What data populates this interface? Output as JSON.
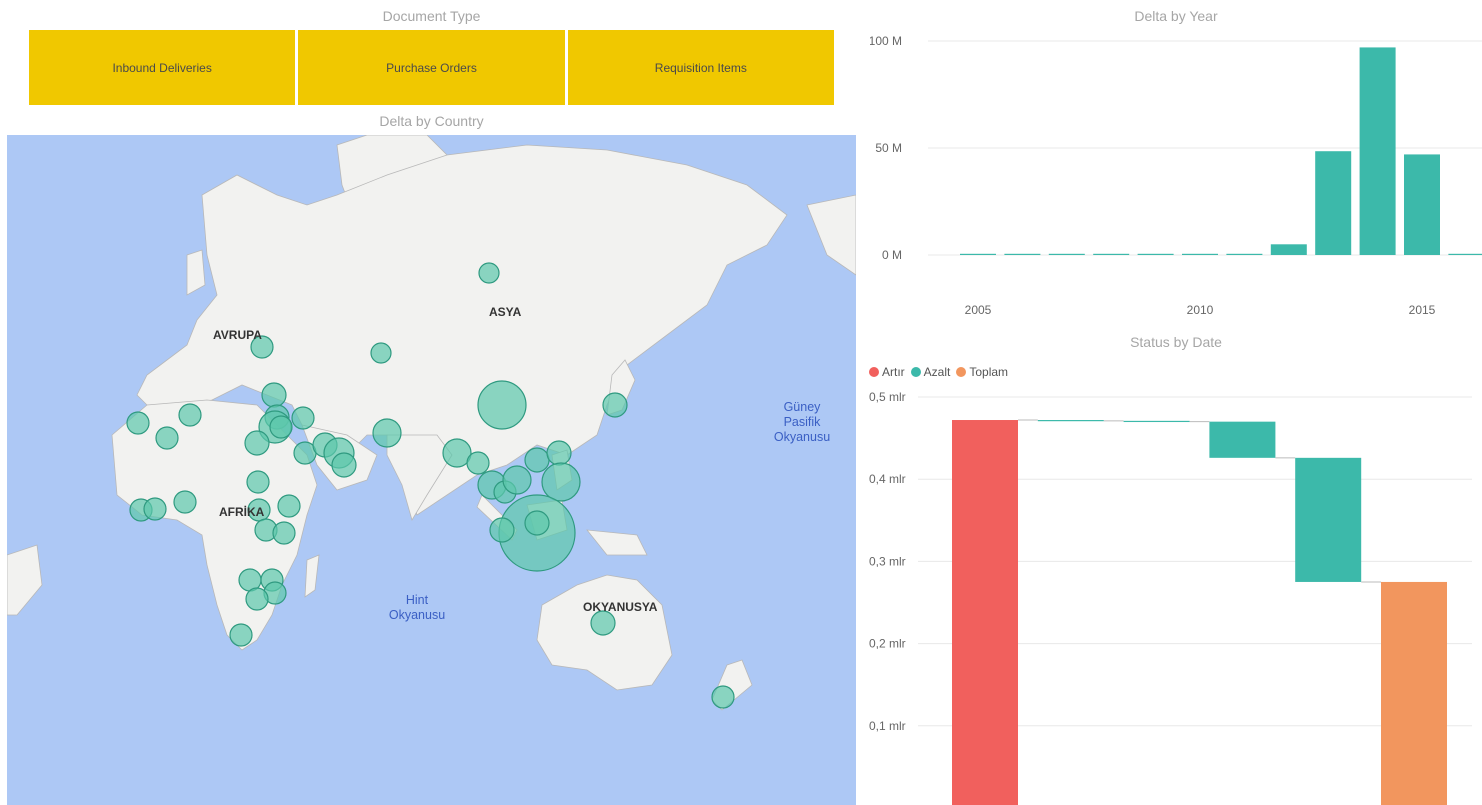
{
  "slicer": {
    "title": "Document Type",
    "items": [
      "Inbound Deliveries",
      "Purchase Orders",
      "Requisition Items"
    ],
    "color": "#f0c800"
  },
  "map": {
    "title": "Delta by Country",
    "continent_labels": [
      "AVRUPA",
      "ASYA",
      "AFRİKA",
      "OKYANUSYA"
    ],
    "ocean_labels": [
      "Güney Pasifik Okyanusu",
      "Hint Okyanusu"
    ],
    "bubble_color": "#5cc7ab"
  },
  "chart_data": [
    {
      "type": "bar",
      "title": "Delta by Year",
      "x": [
        2005,
        2006,
        2007,
        2008,
        2009,
        2010,
        2011,
        2012,
        2013,
        2014,
        2015,
        2016
      ],
      "values": [
        0.0,
        0.0,
        0.0,
        0.0,
        0.2,
        0.0,
        0.0,
        5.0,
        48.5,
        97.0,
        47.0,
        0.3
      ],
      "unit": "M",
      "y_ticks": [
        "0 M",
        "50 M",
        "100 M"
      ],
      "y_tick_values": [
        0,
        50,
        100
      ],
      "x_tick_labels": [
        "2005",
        "2010",
        "2015"
      ],
      "ylim": [
        0,
        100
      ],
      "color": "#3cb9aa",
      "grid": true
    },
    {
      "type": "bar",
      "subtype": "waterfall",
      "title": "Status by Date",
      "legend": [
        {
          "name": "Artır",
          "color": "#f1605d"
        },
        {
          "name": "Azalt",
          "color": "#3cb9aa"
        },
        {
          "name": "Toplam",
          "color": "#f2965e"
        }
      ],
      "legend_position": "top-left",
      "steps": [
        {
          "kind": "Artır",
          "start": 0,
          "end": 0.472
        },
        {
          "kind": "Azalt",
          "start": 0.472,
          "end": 0.471
        },
        {
          "kind": "Azalt",
          "start": 0.471,
          "end": 0.47
        },
        {
          "kind": "Azalt",
          "start": 0.47,
          "end": 0.426
        },
        {
          "kind": "Azalt",
          "start": 0.426,
          "end": 0.275
        },
        {
          "kind": "Toplam",
          "start": 0,
          "end": 0.275
        }
      ],
      "y_ticks": [
        "0,1 mlr",
        "0,2 mlr",
        "0,3 mlr",
        "0,4 mlr",
        "0,5 mlr"
      ],
      "y_tick_values": [
        0.1,
        0.2,
        0.3,
        0.4,
        0.5
      ],
      "ylim": [
        0.05,
        0.5
      ],
      "grid": true
    }
  ]
}
